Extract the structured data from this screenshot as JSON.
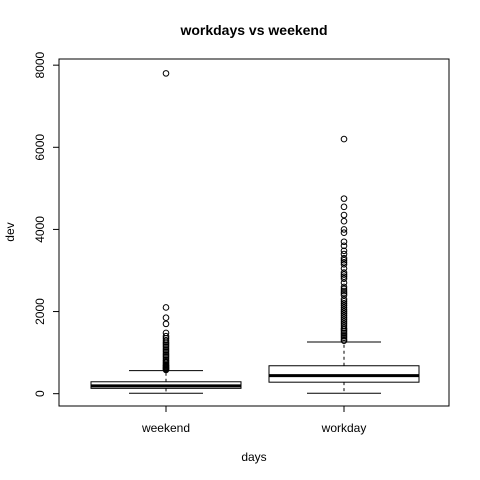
{
  "chart_data": {
    "type": "boxplot",
    "title": "workdays vs weekend",
    "xlabel": "days",
    "ylabel": "dev",
    "categories": [
      "weekend",
      "workday"
    ],
    "ylim": [
      -300,
      8150
    ],
    "yticks": [
      0,
      2000,
      4000,
      6000,
      8000
    ],
    "grid": false,
    "boxes": [
      {
        "category": "weekend",
        "whisker_low": 10,
        "q1": 130,
        "median": 190,
        "q3": 290,
        "whisker_high": 560,
        "outliers": [
          7800,
          2100,
          1850,
          1700,
          1480,
          1400,
          1350,
          1300,
          1260,
          1220,
          1180,
          1140,
          1100,
          1060,
          1020,
          980,
          940,
          900,
          860,
          820,
          790,
          760,
          730,
          700,
          680,
          660,
          640,
          620,
          600,
          580
        ]
      },
      {
        "category": "workday",
        "whisker_low": 10,
        "q1": 280,
        "median": 440,
        "q3": 680,
        "whisker_high": 1260,
        "outliers": [
          6200,
          4750,
          4550,
          4350,
          4200,
          4000,
          3920,
          3700,
          3600,
          3480,
          3400,
          3300,
          3250,
          3200,
          3150,
          3050,
          2950,
          2900,
          2850,
          2800,
          2700,
          2600,
          2550,
          2500,
          2450,
          2400,
          2300,
          2250,
          2200,
          2150,
          2100,
          2050,
          2000,
          1950,
          1900,
          1850,
          1800,
          1750,
          1700,
          1650,
          1600,
          1560,
          1520,
          1480,
          1440,
          1400,
          1360,
          1320,
          1290
        ]
      }
    ]
  }
}
